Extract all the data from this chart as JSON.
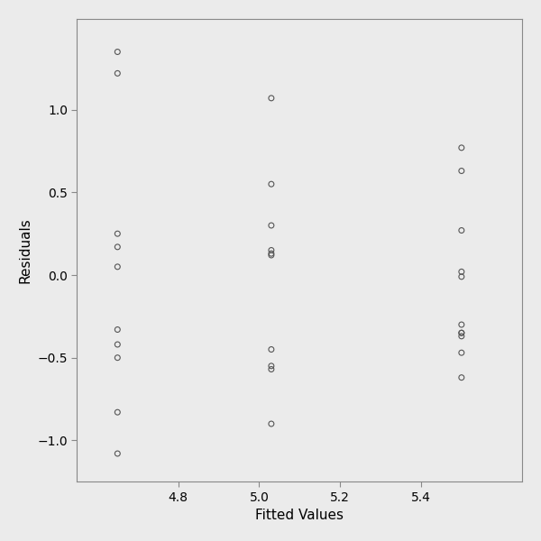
{
  "fitted_values": [
    4.65,
    4.65,
    4.65,
    4.65,
    4.65,
    4.65,
    4.65,
    4.65,
    4.65,
    4.65,
    5.03,
    5.03,
    5.03,
    5.03,
    5.03,
    5.03,
    5.03,
    5.03,
    5.03,
    5.03,
    5.5,
    5.5,
    5.5,
    5.5,
    5.5,
    5.5,
    5.5,
    5.5,
    5.5,
    5.5,
    5.5
  ],
  "residuals": [
    1.35,
    1.22,
    0.25,
    0.17,
    0.05,
    -0.33,
    -0.42,
    -0.5,
    -0.83,
    -1.08,
    1.07,
    0.55,
    0.3,
    0.15,
    0.13,
    0.12,
    -0.45,
    -0.55,
    -0.57,
    -0.9,
    0.77,
    0.63,
    0.27,
    0.02,
    -0.01,
    -0.3,
    -0.35,
    -0.35,
    -0.37,
    -0.47,
    -0.62
  ],
  "xlabel": "Fitted Values",
  "ylabel": "Residuals",
  "xlim": [
    4.55,
    5.65
  ],
  "ylim": [
    -1.25,
    1.55
  ],
  "yticks": [
    -1.0,
    -0.5,
    0.0,
    0.5,
    1.0
  ],
  "xticks": [
    4.8,
    5.0,
    5.2,
    5.4
  ],
  "background_color": "#ebebeb",
  "marker_edge_color": "#555555",
  "marker_size": 18,
  "marker_edge_width": 0.8,
  "xlabel_fontsize": 11,
  "ylabel_fontsize": 11,
  "tick_fontsize": 10,
  "spine_color": "#888888"
}
